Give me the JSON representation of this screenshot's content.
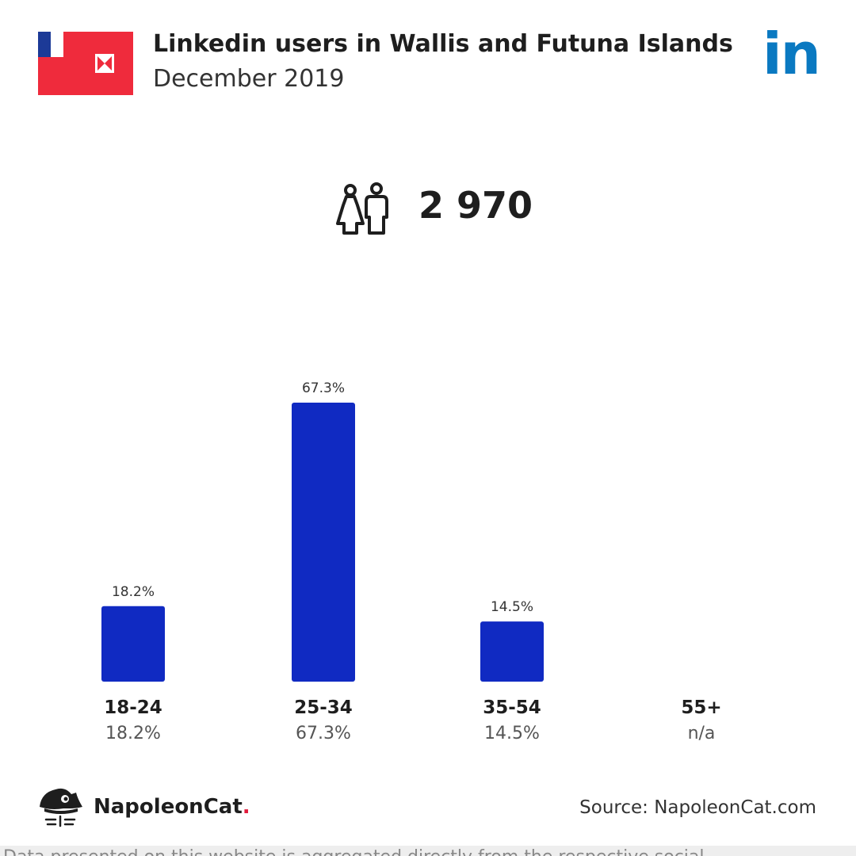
{
  "header": {
    "title": "Linkedin users in Wallis and Futuna Islands",
    "subtitle": "December 2019",
    "brand_logo_text": "in",
    "brand_color": "#0a79c1"
  },
  "flag": {
    "country": "Wallis and Futuna Islands",
    "colors": {
      "red": "#ef2b3c",
      "blue": "#1c3a97",
      "white": "#ffffff"
    }
  },
  "summary": {
    "icon": "users-icon",
    "total_users": "2 970"
  },
  "chart_data": {
    "type": "bar",
    "categories": [
      "18-24",
      "25-34",
      "35-54",
      "55+"
    ],
    "values": [
      18.2,
      67.3,
      14.5,
      null
    ],
    "value_labels": [
      "18.2%",
      "67.3%",
      "14.5%",
      ""
    ],
    "share_labels": [
      "18.2%",
      "67.3%",
      "14.5%",
      "n/a"
    ],
    "bar_color": "#102ac2",
    "grid": false,
    "legend": "none"
  },
  "footer": {
    "brand_name": "NapoleonCat",
    "brand_dot": ".",
    "source": "Source: NapoleonCat.com",
    "logo_icon": "napoleoncat-logo-icon",
    "bottom_text": "Data presented on this website is aggregated directly from the respective social"
  }
}
